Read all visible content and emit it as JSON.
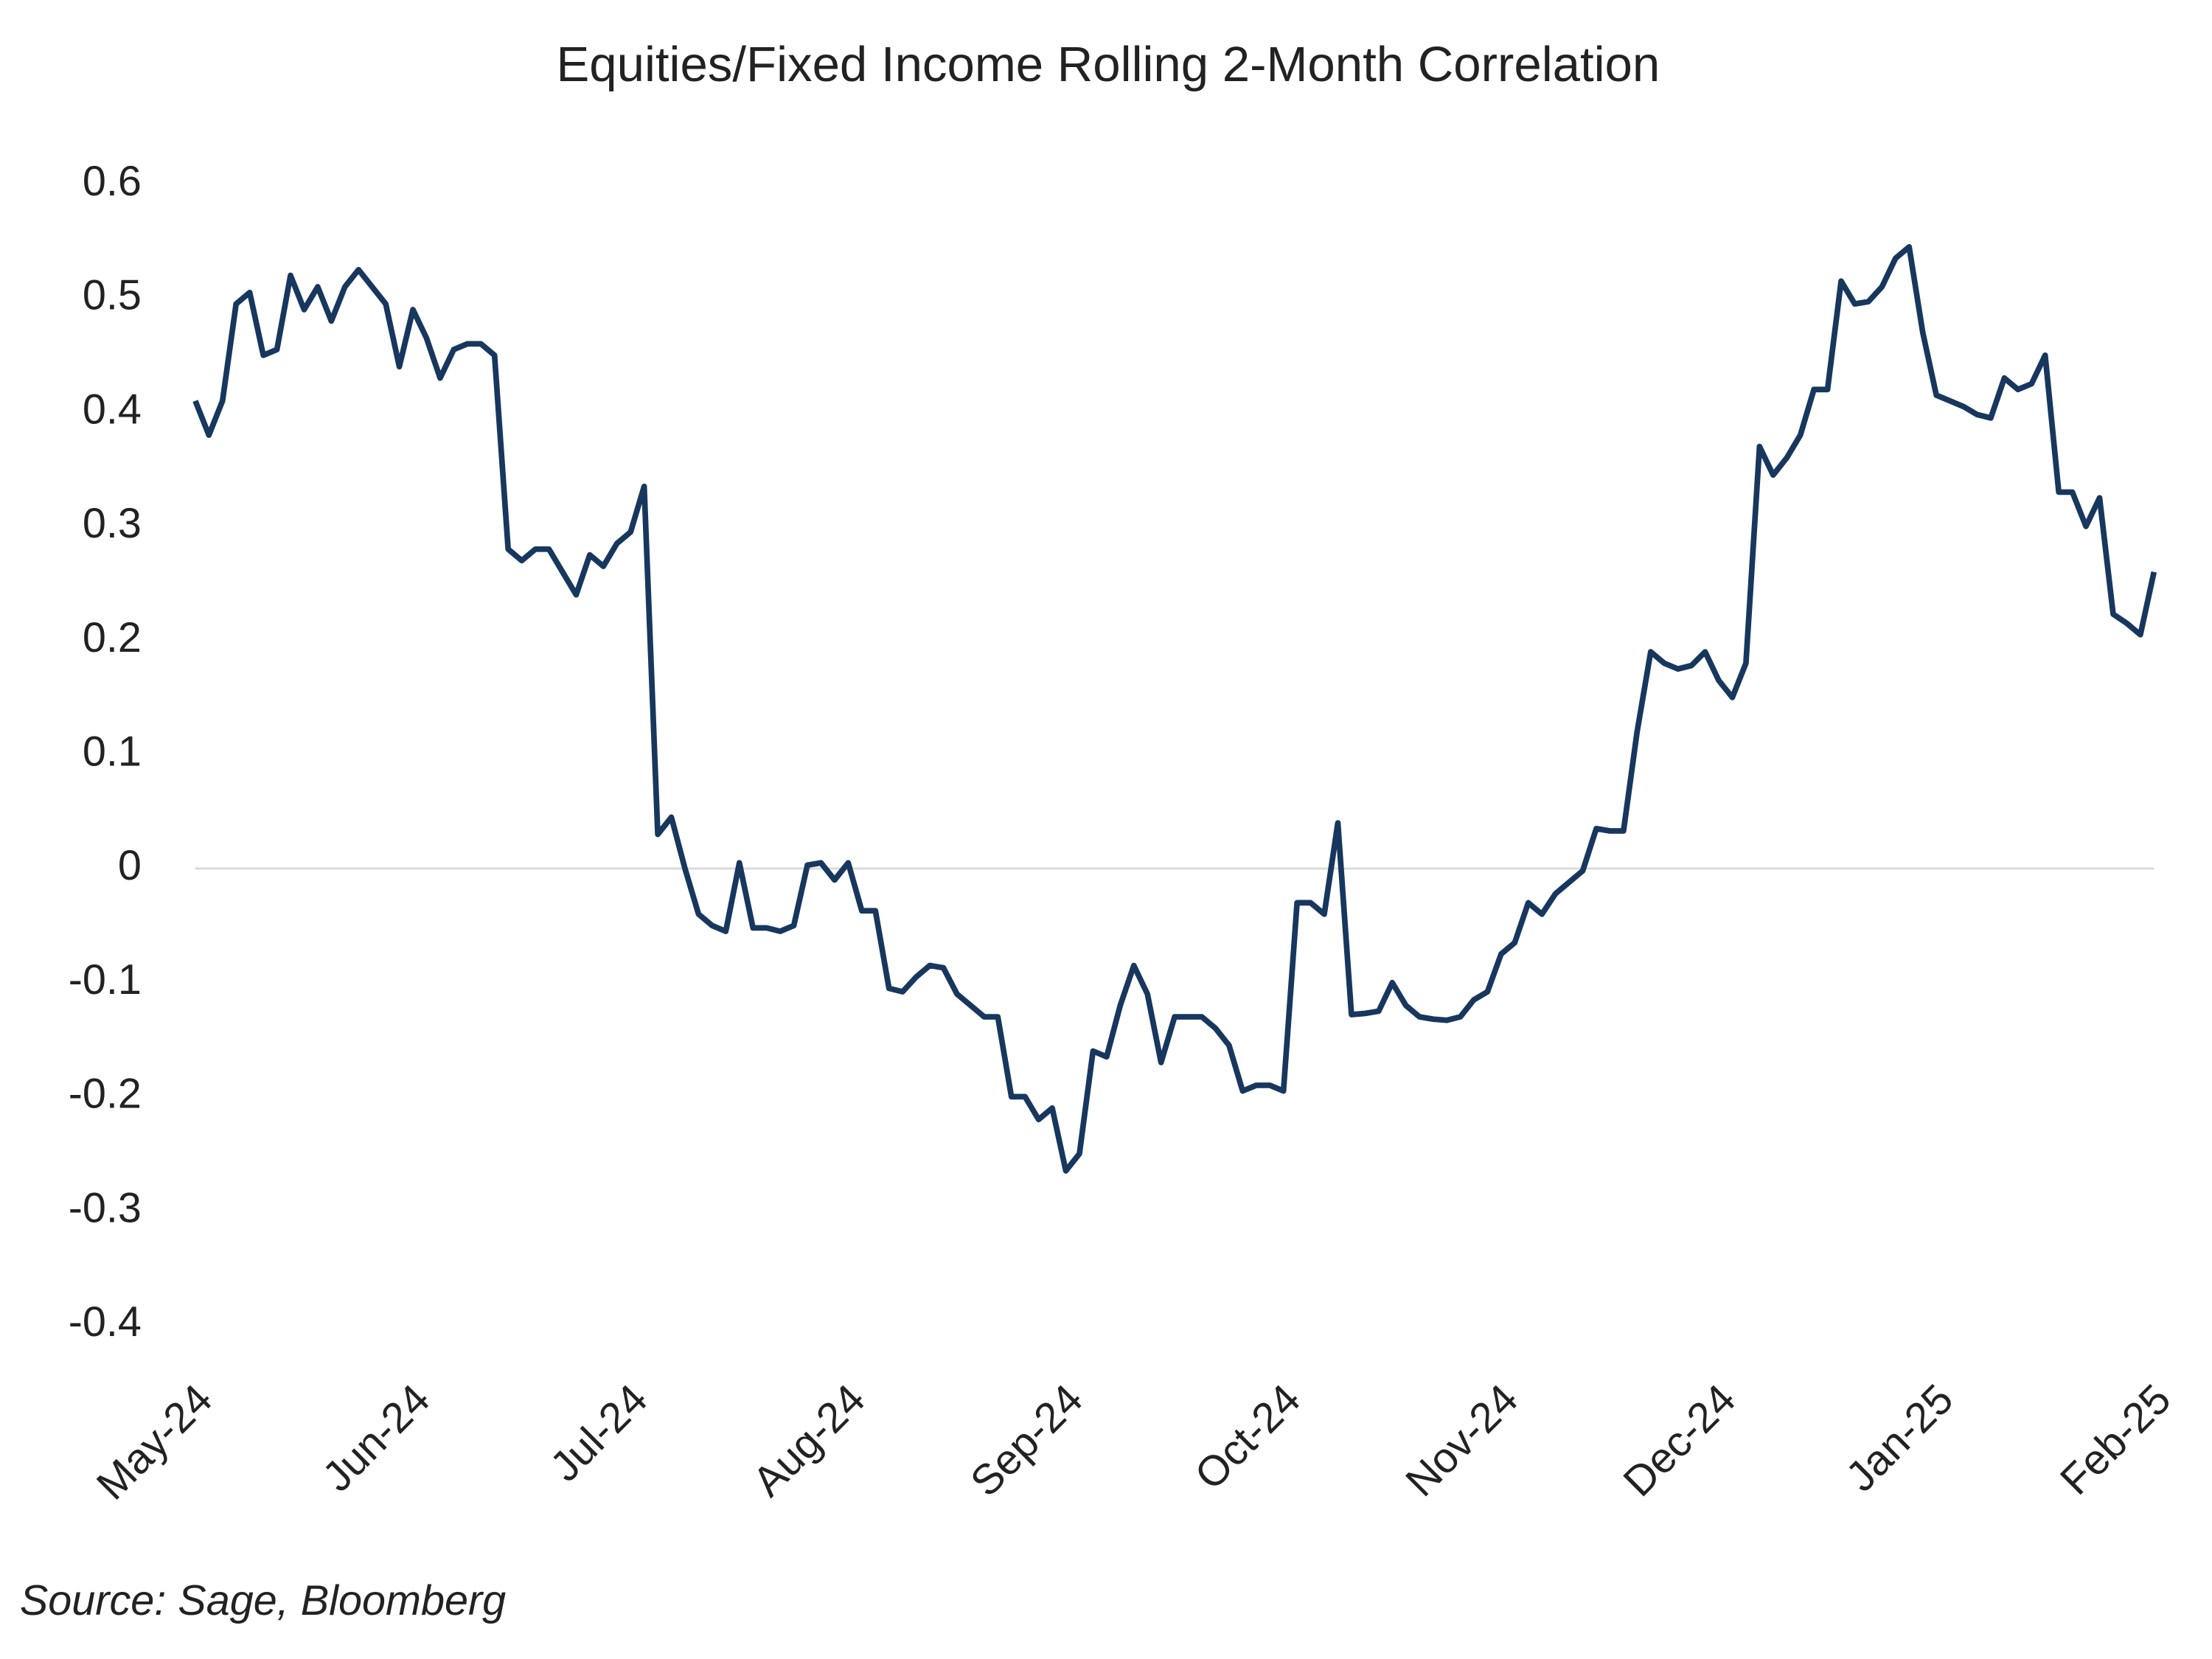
{
  "chart_data": {
    "type": "line",
    "title": "Equities/Fixed Income Rolling 2-Month Correlation",
    "source": "Source: Sage, Bloomberg",
    "color": "#17375e",
    "categories": [
      "May-24",
      null,
      null,
      null,
      null,
      null,
      null,
      null,
      null,
      null,
      null,
      null,
      null,
      null,
      null,
      null,
      "Jun-24",
      null,
      null,
      null,
      null,
      null,
      null,
      null,
      null,
      null,
      null,
      null,
      null,
      null,
      null,
      null,
      "Jul-24",
      null,
      null,
      null,
      null,
      null,
      null,
      null,
      null,
      null,
      null,
      null,
      null,
      null,
      null,
      null,
      "Aug-24",
      null,
      null,
      null,
      null,
      null,
      null,
      null,
      null,
      null,
      null,
      null,
      null,
      null,
      null,
      null,
      "Sep-24",
      null,
      null,
      null,
      null,
      null,
      null,
      null,
      null,
      null,
      null,
      null,
      null,
      null,
      null,
      null,
      "Oct-24",
      null,
      null,
      null,
      null,
      null,
      null,
      null,
      null,
      null,
      null,
      null,
      null,
      null,
      null,
      null,
      "Nov-24",
      null,
      null,
      null,
      null,
      null,
      null,
      null,
      null,
      null,
      null,
      null,
      null,
      null,
      null,
      null,
      "Dec-24",
      null,
      null,
      null,
      null,
      null,
      null,
      null,
      null,
      null,
      null,
      null,
      null,
      null,
      null,
      null,
      "Jan-25",
      null,
      null,
      null,
      null,
      null,
      null,
      null,
      null,
      null,
      null,
      null,
      null,
      null,
      null,
      null,
      "Feb-25"
    ],
    "values": [
      0.41,
      0.38,
      0.41,
      0.495,
      0.505,
      0.45,
      0.455,
      0.52,
      0.49,
      0.51,
      0.48,
      0.51,
      0.525,
      0.51,
      0.495,
      0.44,
      0.49,
      0.465,
      0.43,
      0.455,
      0.46,
      0.46,
      0.45,
      0.28,
      0.27,
      0.28,
      0.28,
      0.26,
      0.24,
      0.275,
      0.265,
      0.285,
      0.295,
      0.335,
      0.03,
      0.045,
      0.0,
      -0.04,
      -0.05,
      -0.055,
      0.005,
      -0.052,
      -0.052,
      -0.055,
      -0.05,
      0.003,
      0.005,
      -0.01,
      0.005,
      -0.037,
      -0.037,
      -0.105,
      -0.108,
      -0.095,
      -0.085,
      -0.087,
      -0.11,
      -0.12,
      -0.13,
      -0.13,
      -0.2,
      -0.2,
      -0.22,
      -0.21,
      -0.265,
      -0.25,
      -0.16,
      -0.165,
      -0.12,
      -0.085,
      -0.11,
      -0.17,
      -0.13,
      -0.13,
      -0.13,
      -0.14,
      -0.155,
      -0.195,
      -0.19,
      -0.19,
      -0.195,
      -0.03,
      -0.03,
      -0.04,
      0.04,
      -0.128,
      -0.127,
      -0.125,
      -0.1,
      -0.12,
      -0.13,
      -0.132,
      -0.133,
      -0.13,
      -0.115,
      -0.108,
      -0.075,
      -0.065,
      -0.03,
      -0.04,
      -0.022,
      -0.012,
      -0.002,
      0.035,
      0.033,
      0.033,
      0.12,
      0.19,
      0.18,
      0.175,
      0.178,
      0.19,
      0.165,
      0.15,
      0.18,
      0.37,
      0.345,
      0.36,
      0.38,
      0.42,
      0.42,
      0.515,
      0.495,
      0.497,
      0.51,
      0.535,
      0.545,
      0.47,
      0.415,
      0.41,
      0.405,
      0.398,
      0.395,
      0.43,
      0.42,
      0.425,
      0.45,
      0.33,
      0.33,
      0.3,
      0.325,
      0.223,
      0.215,
      0.205,
      0.26
    ],
    "ylim": [
      -0.4,
      0.6
    ],
    "yticks": [
      -0.4,
      -0.3,
      -0.2,
      -0.1,
      0,
      0.1,
      0.2,
      0.3,
      0.4,
      0.5,
      0.6
    ],
    "grid": false
  }
}
